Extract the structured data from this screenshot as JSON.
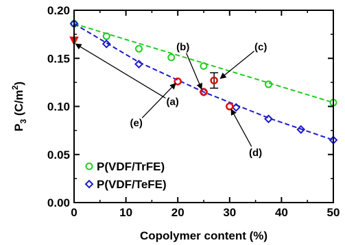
{
  "chart_data": {
    "type": "scatter",
    "xlabel": "Copolymer content (%)",
    "ylabel": {
      "main": "P",
      "sub": "3",
      "unit_pre": " (C/m",
      "unit_sup": "2",
      "unit_post": ")"
    },
    "xlim": [
      0,
      50
    ],
    "ylim": [
      0.0,
      0.2
    ],
    "xticks": [
      0,
      10,
      20,
      30,
      40,
      50
    ],
    "yticks": [
      0.0,
      0.05,
      0.1,
      0.15,
      0.2
    ],
    "xtick_labels": [
      "0",
      "10",
      "20",
      "30",
      "40",
      "50"
    ],
    "ytick_labels": [
      "0.00",
      "0.05",
      "0.10",
      "0.15",
      "0.20"
    ],
    "grid": false,
    "legend_position": "bottom-left",
    "series": [
      {
        "name": "P(VDF/TrFE)",
        "marker": "circle-open",
        "color": "#22cc22",
        "x": [
          0,
          6.25,
          12.5,
          18.75,
          25,
          37.5,
          50
        ],
        "y": [
          0.186,
          0.173,
          0.16,
          0.151,
          0.142,
          0.123,
          0.104
        ]
      },
      {
        "name": "P(VDF/TeFE)",
        "marker": "diamond-open",
        "color": "#1a1acc",
        "x": [
          0,
          6.25,
          12.5,
          25,
          31.25,
          37.5,
          43.75,
          50
        ],
        "y": [
          0.186,
          0.165,
          0.144,
          0.115,
          0.099,
          0.087,
          0.076,
          0.065
        ]
      }
    ],
    "fit_lines": [
      {
        "color": "#22cc22",
        "x": [
          0,
          50
        ],
        "y": [
          0.186,
          0.104
        ]
      },
      {
        "color": "#1a1acc",
        "x": [
          0,
          12.5,
          25,
          37.5,
          50
        ],
        "y": [
          0.186,
          0.146,
          0.115,
          0.088,
          0.065
        ]
      }
    ],
    "red_points": [
      {
        "label": "(a)",
        "x": 0,
        "y": 0.168,
        "marker": "triangle-down"
      },
      {
        "label": "(b)",
        "x": 25,
        "y": 0.115,
        "marker": "circle-open"
      },
      {
        "label": "(c)",
        "x": 27,
        "y": 0.127,
        "marker": "circle-open",
        "err": 0.008
      },
      {
        "label": "(d)",
        "x": 30,
        "y": 0.1,
        "marker": "circle-open"
      },
      {
        "label": "(e)",
        "x": 20,
        "y": 0.126,
        "marker": "circle-open"
      }
    ],
    "annotations": [
      {
        "label": "(a)",
        "text_x": 19,
        "text_y": 0.105,
        "arrow_to_x": 0.3,
        "arrow_to_y": 0.165
      },
      {
        "label": "(b)",
        "text_x": 21,
        "text_y": 0.162,
        "arrow_to_x": 24.6,
        "arrow_to_y": 0.118
      },
      {
        "label": "(c)",
        "text_x": 36,
        "text_y": 0.162,
        "arrow_to_x": 28.2,
        "arrow_to_y": 0.129
      },
      {
        "label": "(d)",
        "text_x": 35,
        "text_y": 0.052,
        "arrow_to_x": 30.3,
        "arrow_to_y": 0.097
      },
      {
        "label": "(e)",
        "text_x": 12,
        "text_y": 0.083,
        "arrow_to_x": 19.6,
        "arrow_to_y": 0.124
      }
    ],
    "red_color": "#e01010"
  }
}
